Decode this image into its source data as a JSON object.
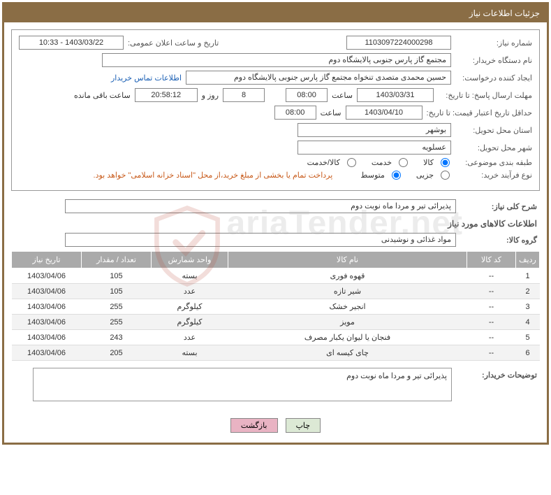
{
  "header": {
    "title": "جزئیات اطلاعات نیاز"
  },
  "watermark": "ariaTender.net",
  "fields": {
    "req_no_label": "شماره نیاز:",
    "req_no": "1103097224000298",
    "announce_label": "تاریخ و ساعت اعلان عمومی:",
    "announce_value": "1403/03/22 - 10:33",
    "buyer_org_label": "نام دستگاه خریدار:",
    "buyer_org": "مجتمع گاز پارس جنوبی  پالایشگاه دوم",
    "requester_label": "ایجاد کننده درخواست:",
    "requester": "حسین محمدی متصدی تنخواه مجتمع گاز پارس جنوبی  پالایشگاه دوم",
    "contact_link": "اطلاعات تماس خریدار",
    "deadline_send_label": "مهلت ارسال پاسخ: تا تاریخ:",
    "deadline_send_date": "1403/03/31",
    "time_label": "ساعت",
    "deadline_send_time": "08:00",
    "days_remaining": "8",
    "days_and_label": "روز و",
    "time_remaining": "20:58:12",
    "time_remaining_label": "ساعت باقی مانده",
    "min_validity_label": "حداقل تاریخ اعتبار قیمت: تا تاریخ:",
    "min_validity_date": "1403/04/10",
    "min_validity_time": "08:00",
    "delivery_province_label": "استان محل تحویل:",
    "delivery_province": "بوشهر",
    "delivery_city_label": "شهر محل تحویل:",
    "delivery_city": "عسلویه",
    "subject_class_label": "طبقه بندی موضوعی:",
    "subject_opts": {
      "goods": "کالا",
      "service": "خدمت",
      "both": "کالا/خدمت"
    },
    "purchase_type_label": "نوع فرآیند خرید:",
    "purchase_opts": {
      "partial": "جزیی",
      "medium": "متوسط"
    },
    "payment_note": "پرداخت تمام یا بخشی از مبلغ خرید،از محل \"اسناد خزانه اسلامی\" خواهد بود.",
    "desc_label": "شرح کلی نیاز:",
    "desc_value": "پذیرائی تیر و مردا ماه نوبت دوم",
    "goods_info_title": "اطلاعات کالاهای مورد نیاز",
    "goods_group_label": "گروه کالا:",
    "goods_group": "مواد غذائی و نوشیدنی",
    "buyer_notes_label": "توضیحات خریدار:",
    "buyer_notes": "پذیرائی تیر و مردا ماه نوبت دوم"
  },
  "table": {
    "columns": [
      "ردیف",
      "کد کالا",
      "نام کالا",
      "واحد شمارش",
      "تعداد / مقدار",
      "تاریخ نیاز"
    ],
    "rows": [
      [
        "1",
        "--",
        "قهوه فوری",
        "بسته",
        "105",
        "1403/04/06"
      ],
      [
        "2",
        "--",
        "شیر تازه",
        "عدد",
        "105",
        "1403/04/06"
      ],
      [
        "3",
        "--",
        "انجیر خشک",
        "کیلوگرم",
        "255",
        "1403/04/06"
      ],
      [
        "4",
        "--",
        "مویز",
        "کیلوگرم",
        "255",
        "1403/04/06"
      ],
      [
        "5",
        "--",
        "فنجان یا لیوان یکبار مصرف",
        "عدد",
        "243",
        "1403/04/06"
      ],
      [
        "6",
        "--",
        "چای کیسه ای",
        "بسته",
        "205",
        "1403/04/06"
      ]
    ]
  },
  "buttons": {
    "print": "چاپ",
    "back": "بازگشت"
  }
}
